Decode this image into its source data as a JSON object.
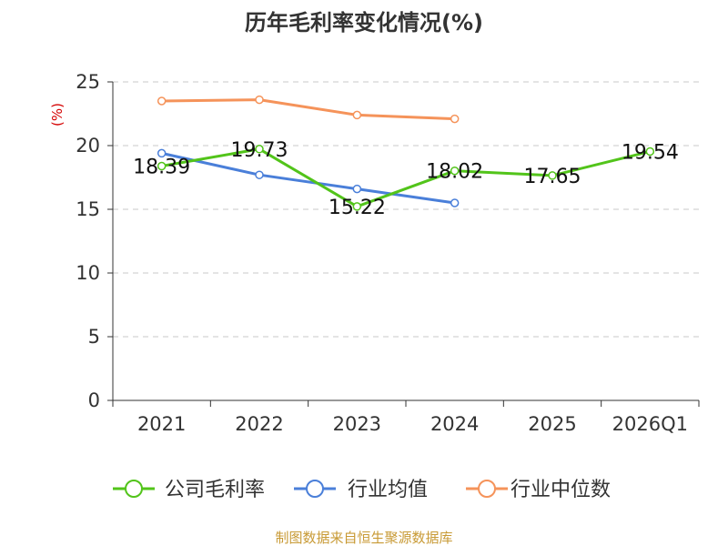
{
  "chart_data": {
    "type": "line",
    "title": "历年毛利率变化情况(%)",
    "ylabel": "(%)",
    "xlabel": "",
    "categories": [
      "2021",
      "2022",
      "2023",
      "2024",
      "2025",
      "2026Q1"
    ],
    "ylim": [
      0,
      25
    ],
    "yticks": [
      "0",
      "5",
      "10",
      "15",
      "20",
      "25"
    ],
    "grid": true,
    "legend_position": "bottom",
    "series": [
      {
        "name": "公司毛利率",
        "color": "#52c41a",
        "values": [
          18.39,
          19.73,
          15.22,
          18.02,
          17.65,
          19.54
        ],
        "labels": [
          "18.39",
          "19.73",
          "15.22",
          "18.02",
          "17.65",
          "19.54"
        ]
      },
      {
        "name": "行业均值",
        "color": "#4a7fd9",
        "values": [
          19.4,
          17.7,
          16.6,
          15.5,
          null,
          null
        ]
      },
      {
        "name": "行业中位数",
        "color": "#f5935a",
        "values": [
          23.5,
          23.6,
          22.4,
          22.1,
          null,
          null
        ]
      }
    ]
  },
  "source": "制图数据来自恒生聚源数据库"
}
